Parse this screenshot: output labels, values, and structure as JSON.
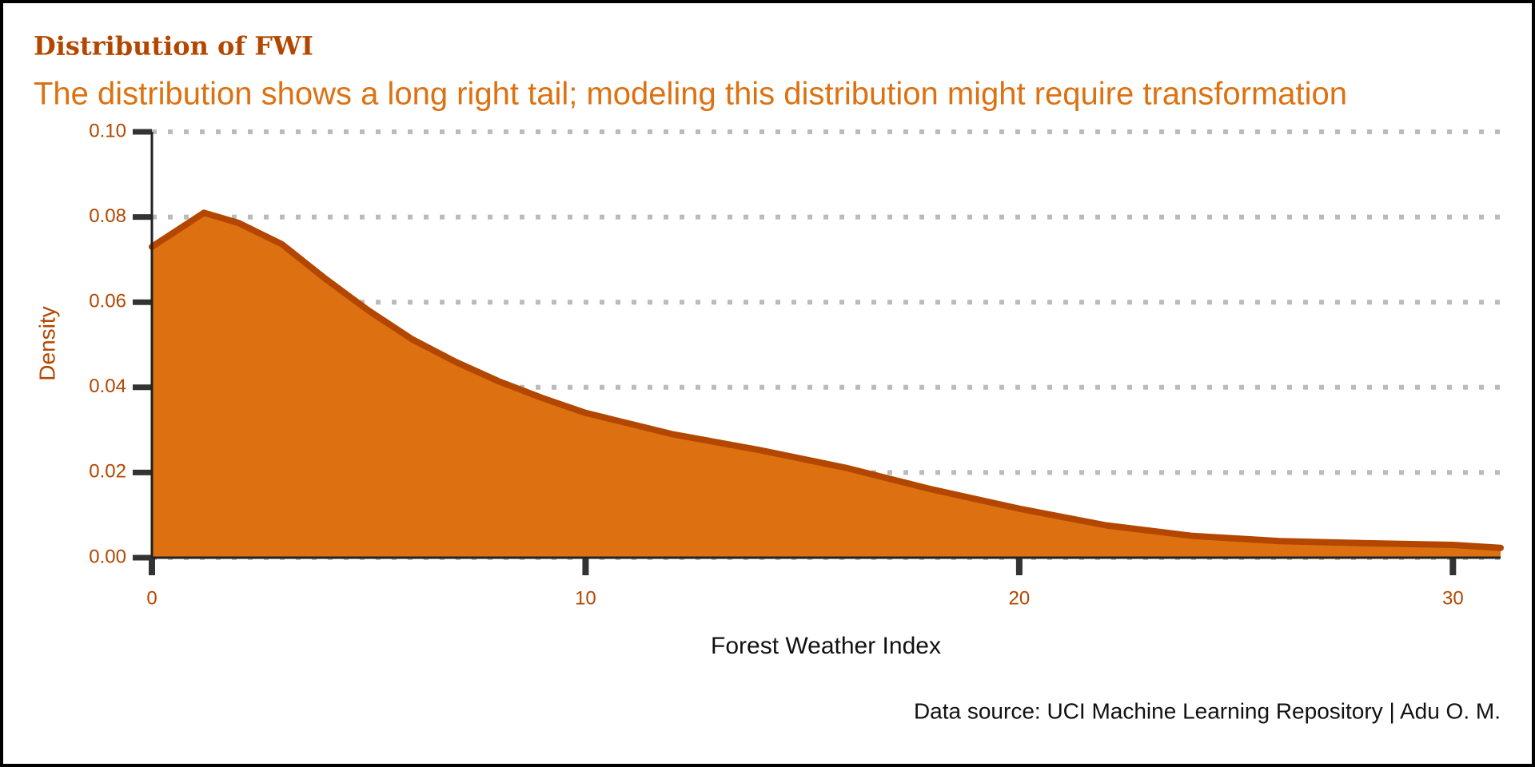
{
  "chart_data": {
    "type": "area",
    "title": "Distribution of FWI",
    "subtitle": "The distribution shows a long right tail; modeling this distribution might require transformation",
    "x_label": "Forest Weather Index",
    "y_label": "Density",
    "caption": "Data source: UCI Machine Learning Repository | Adu O. M.",
    "x": [
      0,
      1.2,
      2,
      3,
      4,
      5,
      6,
      7,
      8,
      9,
      10,
      12,
      14,
      16,
      18,
      20,
      22,
      24,
      26,
      28,
      30,
      31.1
    ],
    "values": [
      0.073,
      0.081,
      0.0786,
      0.0736,
      0.0655,
      0.058,
      0.0513,
      0.046,
      0.0414,
      0.0375,
      0.034,
      0.029,
      0.0253,
      0.0211,
      0.016,
      0.0115,
      0.0076,
      0.0051,
      0.0039,
      0.0034,
      0.003,
      0.0023
    ],
    "fill_color": "#dd7111",
    "line_color": "#b34700",
    "xlim": [
      0,
      31.1
    ],
    "ylim": [
      0,
      0.1
    ],
    "xticks": [
      0,
      10,
      20,
      30
    ],
    "yticks": [
      {
        "value": 0,
        "label": "0.00"
      },
      {
        "value": 0.02,
        "label": "0.02"
      },
      {
        "value": 0.04,
        "label": "0.04"
      },
      {
        "value": 0.06,
        "label": "0.06"
      },
      {
        "value": 0.08,
        "label": "0.08"
      },
      {
        "value": 0.1,
        "label": "0.10"
      }
    ],
    "grid": true
  }
}
